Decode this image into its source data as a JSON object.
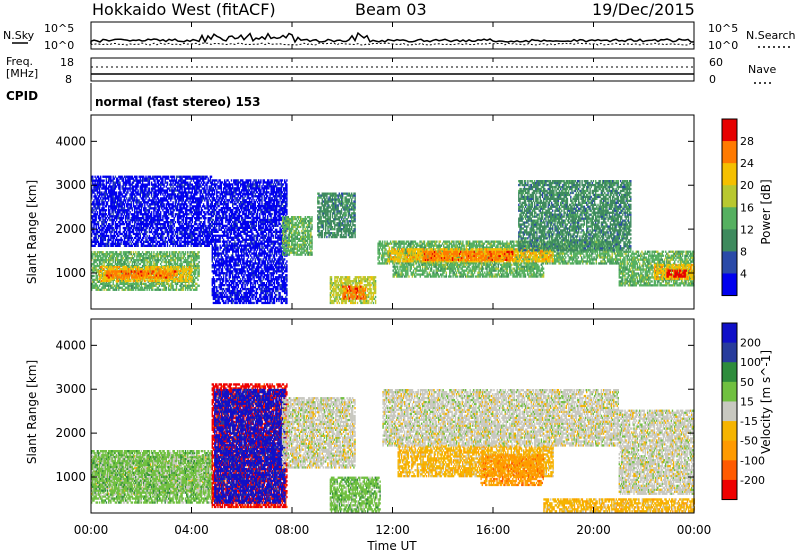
{
  "header": {
    "station": "Hokkaido West (fitACF)",
    "beam": "Beam 03",
    "date": "19/Dec/2015"
  },
  "noise_panel": {
    "left_label": "N.Sky",
    "right_label": "N.Search",
    "left_ticks": [
      "10^5",
      "10^0"
    ],
    "right_ticks": [
      "10^5",
      "10^0"
    ]
  },
  "freq_panel": {
    "left_label_line1": "Freq.",
    "left_label_line2": "[MHz]",
    "right_label": "Nave",
    "left_ticks": [
      "18",
      "8"
    ],
    "right_ticks": [
      "60",
      "0"
    ]
  },
  "cpid": {
    "label": "CPID",
    "text": "normal (fast stereo) 153"
  },
  "x_axis": {
    "label": "Time UT",
    "ticks": [
      "00:00",
      "04:00",
      "08:00",
      "12:00",
      "16:00",
      "20:00",
      "00:00"
    ]
  },
  "colors": {
    "power_scale": [
      "#0000ee",
      "#2a4aa8",
      "#3e8a5e",
      "#55b060",
      "#b8c830",
      "#f5c000",
      "#ff7a00",
      "#e60000"
    ],
    "velocity_scale": [
      "#ee0000",
      "#ff5a00",
      "#ff9a00",
      "#f5b400",
      "#c8c8c0",
      "#70c040",
      "#2e8c3c",
      "#283c9c",
      "#1010c8"
    ]
  },
  "chart_data": [
    {
      "type": "heatmap",
      "title": "",
      "xlabel": "",
      "ylabel": "Slant Range [km]",
      "xlim": [
        0,
        24
      ],
      "ylim": [
        180,
        4600
      ],
      "yticks": [
        "1000",
        "2000",
        "3000",
        "4000"
      ],
      "colorbar_label": "Power [dB]",
      "colorbar_ticks": [
        "4",
        "8",
        "12",
        "16",
        "20",
        "24",
        "28"
      ],
      "regions": [
        {
          "t0": 0.0,
          "t1": 4.3,
          "r0": 600,
          "r1": 1500,
          "level": 3
        },
        {
          "t0": 0.3,
          "t1": 4.0,
          "r0": 800,
          "r1": 1150,
          "level": 5
        },
        {
          "t0": 0.6,
          "t1": 3.4,
          "r0": 880,
          "r1": 1050,
          "level": 6
        },
        {
          "t0": 0.0,
          "t1": 4.8,
          "r0": 1600,
          "r1": 3200,
          "level": 0
        },
        {
          "t0": 4.8,
          "t1": 7.8,
          "r0": 300,
          "r1": 3100,
          "level": 0
        },
        {
          "t0": 7.6,
          "t1": 8.8,
          "r0": 1400,
          "r1": 2300,
          "level": 3
        },
        {
          "t0": 9.0,
          "t1": 10.5,
          "r0": 1800,
          "r1": 2800,
          "level": 2
        },
        {
          "t0": 9.5,
          "t1": 11.3,
          "r0": 300,
          "r1": 900,
          "level": 4
        },
        {
          "t0": 10.0,
          "t1": 10.9,
          "r0": 400,
          "r1": 700,
          "level": 6
        },
        {
          "t0": 11.4,
          "t1": 21.0,
          "r0": 1200,
          "r1": 1700,
          "level": 3
        },
        {
          "t0": 11.8,
          "t1": 18.4,
          "r0": 1250,
          "r1": 1550,
          "level": 5
        },
        {
          "t0": 13.2,
          "t1": 16.8,
          "r0": 1280,
          "r1": 1480,
          "level": 6
        },
        {
          "t0": 12.0,
          "t1": 18.0,
          "r0": 900,
          "r1": 1200,
          "level": 3
        },
        {
          "t0": 17.0,
          "t1": 21.5,
          "r0": 1500,
          "r1": 3100,
          "level": 2
        },
        {
          "t0": 21.0,
          "t1": 24.0,
          "r0": 700,
          "r1": 1500,
          "level": 3
        },
        {
          "t0": 22.4,
          "t1": 24.0,
          "r0": 850,
          "r1": 1200,
          "level": 5
        },
        {
          "t0": 22.9,
          "t1": 23.7,
          "r0": 900,
          "r1": 1050,
          "level": 7
        }
      ]
    },
    {
      "type": "heatmap",
      "title": "",
      "xlabel": "Time UT",
      "ylabel": "Slant Range [km]",
      "xlim": [
        0,
        24
      ],
      "ylim": [
        180,
        4600
      ],
      "yticks": [
        "1000",
        "2000",
        "3000",
        "4000"
      ],
      "colorbar_label": "Velocity [m s^-1]",
      "colorbar_ticks": [
        "-200",
        "-100",
        "-50",
        "-15",
        "15",
        "50",
        "100",
        "200"
      ],
      "regions": [
        {
          "t0": 0.0,
          "t1": 4.8,
          "r0": 600,
          "r1": 1500,
          "level": 4
        },
        {
          "t0": 0.0,
          "t1": 4.8,
          "r0": 400,
          "r1": 1600,
          "level": 5
        },
        {
          "t0": 4.8,
          "t1": 7.8,
          "r0": 300,
          "r1": 3100,
          "level": 0
        },
        {
          "t0": 4.9,
          "t1": 7.7,
          "r0": 400,
          "r1": 3000,
          "level": 8
        },
        {
          "t0": 7.6,
          "t1": 10.5,
          "r0": 1200,
          "r1": 2800,
          "level": 4
        },
        {
          "t0": 9.5,
          "t1": 11.5,
          "r0": 200,
          "r1": 1000,
          "level": 5
        },
        {
          "t0": 12.2,
          "t1": 18.4,
          "r0": 1000,
          "r1": 1700,
          "level": 3
        },
        {
          "t0": 15.5,
          "t1": 18.0,
          "r0": 800,
          "r1": 1500,
          "level": 2
        },
        {
          "t0": 11.6,
          "t1": 21.0,
          "r0": 1700,
          "r1": 3000,
          "level": 4
        },
        {
          "t0": 21.0,
          "t1": 24.0,
          "r0": 600,
          "r1": 2500,
          "level": 4
        },
        {
          "t0": 18.0,
          "t1": 24.0,
          "r0": 200,
          "r1": 500,
          "level": 3
        }
      ]
    }
  ]
}
